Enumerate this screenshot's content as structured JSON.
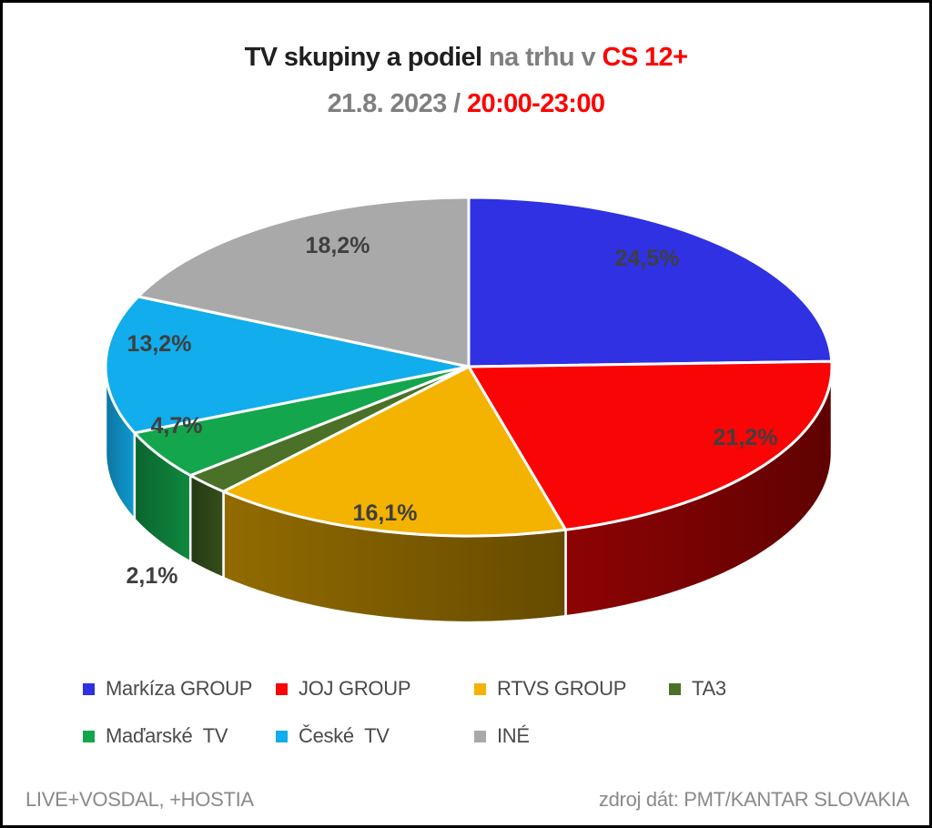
{
  "title": {
    "black": "TV skupiny a podiel ",
    "gray": "na trhu v ",
    "red": "CS 12+"
  },
  "subtitle": {
    "gray": "21.8. 2023 / ",
    "red": "20:00-23:00"
  },
  "chart_data": {
    "type": "pie",
    "three_d": true,
    "start_angle_deg": 0,
    "direction": "clockwise",
    "unit": "%",
    "title": "TV skupiny a podiel na trhu v CS 12+",
    "subtitle": "21.8. 2023 / 20:00-23:00",
    "legend_position": "bottom",
    "slices": [
      {
        "label": "Markíza GROUP",
        "value": 24.5,
        "display": "24,5%",
        "color": "#2F31E2"
      },
      {
        "label": "JOJ GROUP",
        "value": 21.2,
        "display": "21,2%",
        "color": "#F90505"
      },
      {
        "label": "RTVS GROUP",
        "value": 16.1,
        "display": "16,1%",
        "color": "#F3B300"
      },
      {
        "label": "TA3",
        "value": 2.1,
        "display": "2,1%",
        "color": "#4A7127"
      },
      {
        "label": "Maďarské  TV",
        "value": 4.7,
        "display": "4,7%",
        "color": "#14A64C"
      },
      {
        "label": "České  TV",
        "value": 13.2,
        "display": "13,2%",
        "color": "#11ADEC"
      },
      {
        "label": "INÉ",
        "value": 18.2,
        "display": "18,2%",
        "color": "#A9A9A9"
      }
    ],
    "value_label_color": "#3F3F3F"
  },
  "footer": {
    "left": "LIVE+VOSDAL, +HOSTIA",
    "right": "zdroj dát: PMT/KANTAR SLOVAKIA"
  }
}
